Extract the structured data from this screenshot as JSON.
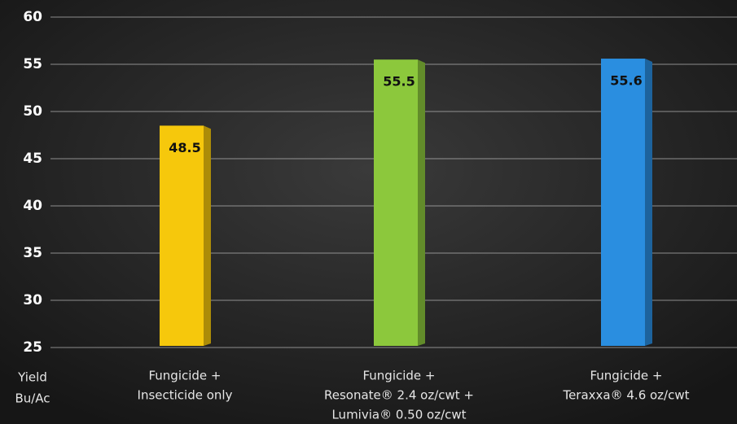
{
  "chart_data": {
    "type": "bar",
    "categories": [
      [
        "Fungicide +",
        "Insecticide only"
      ],
      [
        "Fungicide +",
        "Resonate® 2.4 oz/cwt +",
        "Lumivia® 0.50 oz/cwt"
      ],
      [
        "Fungicide +",
        "Teraxxa® 4.6 oz/cwt"
      ]
    ],
    "values": [
      48.5,
      55.5,
      55.6
    ],
    "colors": [
      "#f6c80c",
      "#8cc83c",
      "#2a8ee0"
    ],
    "y_label": [
      "Yield",
      "Bu/Ac"
    ],
    "ylim": [
      25,
      60
    ],
    "yticks": [
      25,
      30,
      35,
      40,
      45,
      50,
      55,
      60
    ],
    "grid": true
  }
}
